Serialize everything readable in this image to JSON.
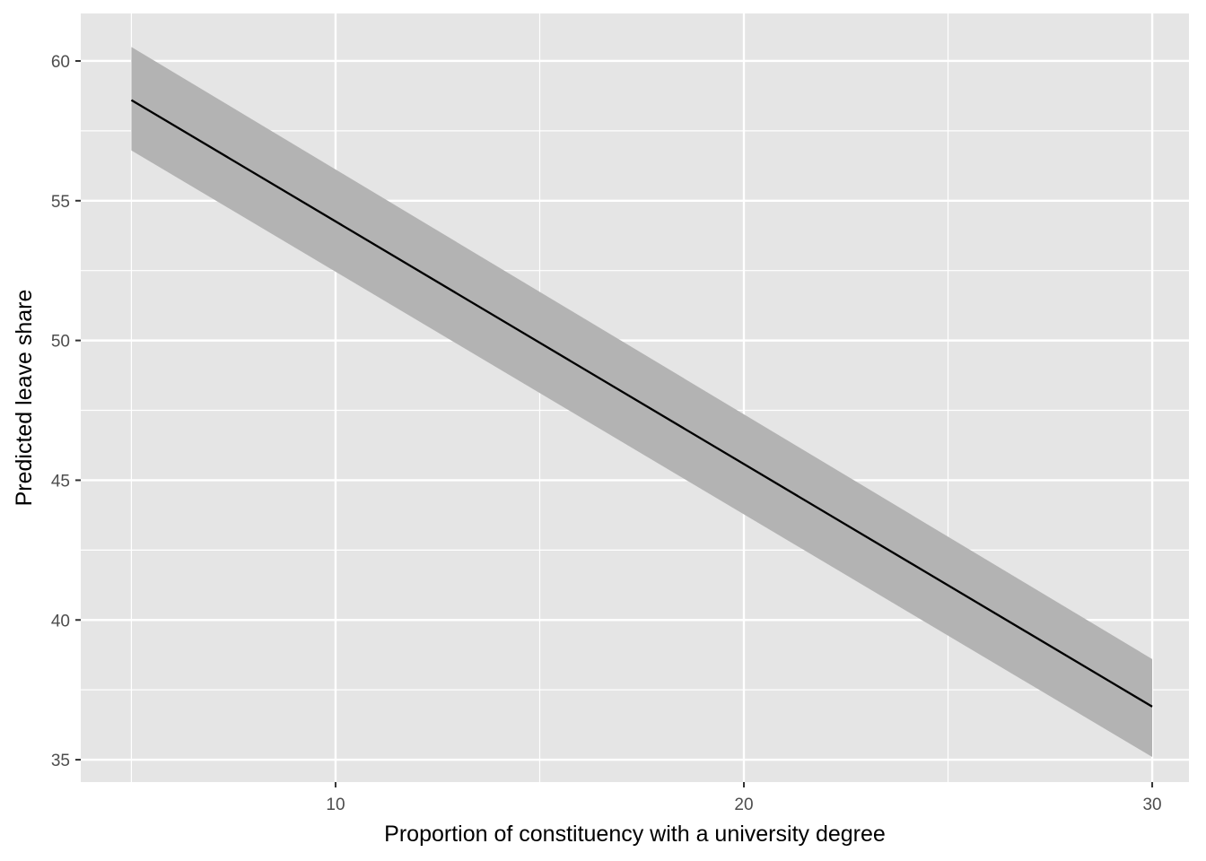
{
  "chart_data": {
    "type": "line",
    "title": "",
    "xlabel": "Proportion of constituency with a university degree",
    "ylabel": "Predicted leave share",
    "xlim": [
      3.76,
      30.9
    ],
    "ylim": [
      34.2,
      61.7
    ],
    "x_ticks": [
      10,
      20,
      30
    ],
    "x_tick_labels": [
      "10",
      "20",
      "30"
    ],
    "x_minor_ticks": [
      5,
      15,
      25
    ],
    "y_ticks": [
      35,
      40,
      45,
      50,
      55,
      60
    ],
    "y_tick_labels": [
      "35",
      "40",
      "45",
      "50",
      "55",
      "60"
    ],
    "y_minor_ticks": [
      37.5,
      42.5,
      47.5,
      52.5,
      57.5
    ],
    "grid": true,
    "legend": "none",
    "series": [
      {
        "x": [
          5,
          30
        ],
        "y": [
          58.6,
          36.9
        ],
        "lower": [
          56.8,
          35.1
        ],
        "upper": [
          60.5,
          38.6
        ]
      }
    ],
    "colors": {
      "panel": "#e5e5e5",
      "grid": "#ffffff",
      "ribbon": "#b3b3b3",
      "line": "#000000",
      "tick": "#333333"
    }
  }
}
